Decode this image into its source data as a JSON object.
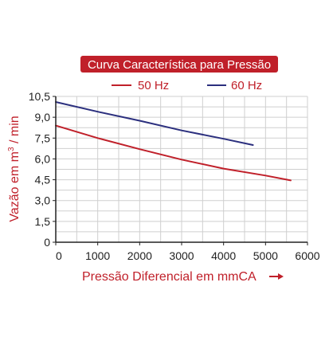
{
  "chart_data": {
    "type": "line",
    "title": "Curva Característica para Pressão",
    "xlabel": "Pressão Diferencial em mmCA",
    "ylabel_main": "Vazão em m",
    "ylabel_sup": "3",
    "ylabel_tail": " / min",
    "xlim": [
      0,
      6000
    ],
    "ylim": [
      0,
      10.5
    ],
    "x_ticks": [
      0,
      1000,
      2000,
      3000,
      4000,
      5000,
      6000
    ],
    "x_tick_labels": [
      "0",
      "1000",
      "2000",
      "3000",
      "4000",
      "5000",
      "6000"
    ],
    "y_ticks": [
      0,
      1.5,
      3.0,
      4.5,
      6.0,
      7.5,
      9.0,
      10.5
    ],
    "y_tick_labels": [
      "0",
      "1,5",
      "3,0",
      "4,5",
      "6,0",
      "7,5",
      "9,0",
      "10,5"
    ],
    "x_minor_step": 500,
    "y_minor_step": 0.75,
    "grid": true,
    "legend_position": "top",
    "series": [
      {
        "name": "50 Hz",
        "color": "#c0202a",
        "x": [
          0,
          1000,
          2000,
          3000,
          4000,
          5000,
          5600
        ],
        "y": [
          8.4,
          7.5,
          6.7,
          5.95,
          5.3,
          4.8,
          4.45
        ]
      },
      {
        "name": "60 Hz",
        "color": "#2b2f7e",
        "x": [
          0,
          1000,
          2000,
          3000,
          4000,
          4700
        ],
        "y": [
          10.1,
          9.4,
          8.75,
          8.05,
          7.45,
          7.0
        ]
      }
    ]
  },
  "colors": {
    "title_bg": "#c0202a",
    "title_text": "#ffffff",
    "grid": "#cfcfcf",
    "axis": "#222222",
    "text_accent": "#c0202a"
  }
}
